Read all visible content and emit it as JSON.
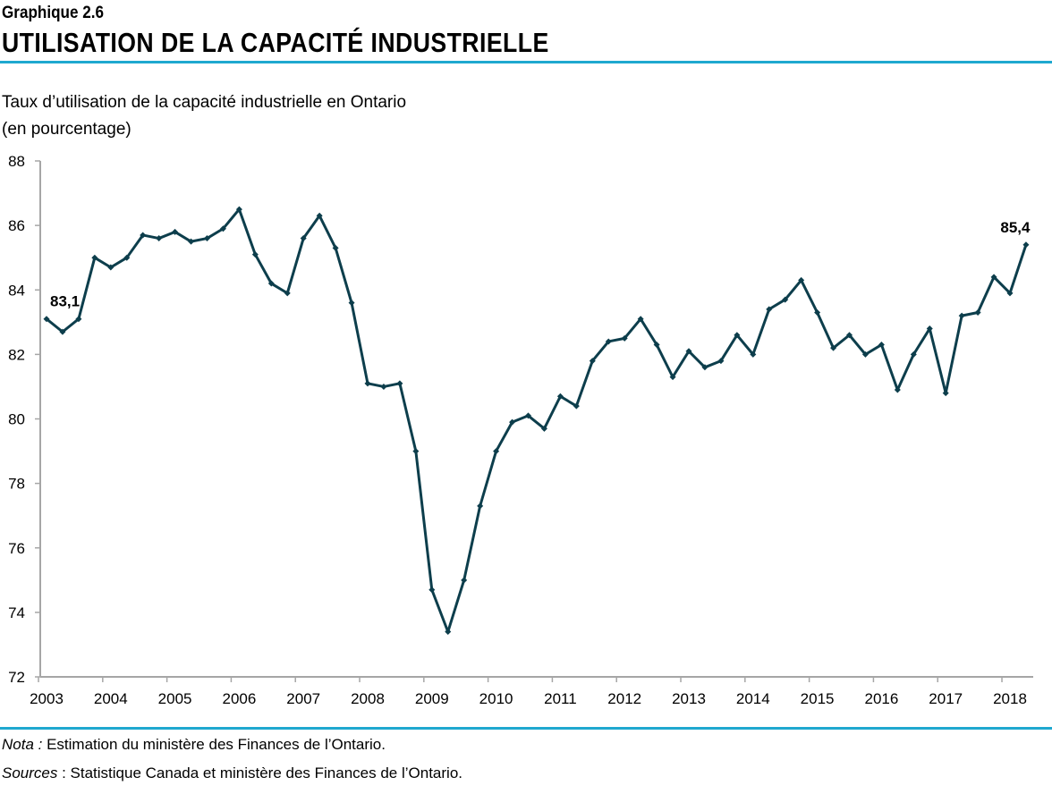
{
  "header": {
    "kicker": "Graphique 2.6",
    "title": "UTILISATION DE LA CAPACITÉ INDUSTRIELLE"
  },
  "subtitle": {
    "line1": "Taux d’utilisation de la capacité industrielle en Ontario",
    "line2": "(en pourcentage)"
  },
  "notes": {
    "nota_label": "Nota :",
    "nota_text": " Estimation du ministère des Finances de l’Ontario.",
    "sources_label": "Sources",
    "sources_text": " : Statistique Canada et ministère des Finances de l’Ontario."
  },
  "colors": {
    "line": "#0d3e4c",
    "rule": "#1fa8cf",
    "axis": "#a6a6a6"
  },
  "chart_data": {
    "type": "line",
    "title": "Taux d’utilisation de la capacité industrielle en Ontario",
    "ylabel": "(en pourcentage)",
    "ylim": [
      72,
      88
    ],
    "yticks": [
      72,
      74,
      76,
      78,
      80,
      82,
      84,
      86,
      88
    ],
    "frequency": "quarterly",
    "start": "2003T1",
    "xtick_labels": [
      "2003",
      "2004",
      "2005",
      "2006",
      "2007",
      "2008",
      "2009",
      "2010",
      "2011",
      "2012",
      "2013",
      "2014",
      "2015",
      "2016",
      "2017",
      "2018"
    ],
    "grid": false,
    "markers": "diamond",
    "values": [
      83.1,
      82.7,
      83.1,
      85.0,
      84.7,
      85.0,
      85.7,
      85.6,
      85.8,
      85.5,
      85.6,
      85.9,
      86.5,
      85.1,
      84.2,
      83.9,
      85.6,
      86.3,
      85.3,
      83.6,
      81.1,
      81.0,
      81.1,
      79.0,
      74.7,
      73.4,
      75.0,
      77.3,
      79.0,
      79.9,
      80.1,
      79.7,
      80.7,
      80.4,
      81.8,
      82.4,
      82.5,
      83.1,
      82.3,
      81.3,
      82.1,
      81.6,
      81.8,
      82.6,
      82.0,
      83.4,
      83.7,
      84.3,
      83.3,
      82.2,
      82.6,
      82.0,
      82.3,
      80.9,
      82.0,
      82.8,
      80.8,
      83.2,
      83.3,
      84.4,
      83.9,
      85.4
    ],
    "annotations": [
      {
        "index": 0,
        "text": "83,1"
      },
      {
        "index": 61,
        "text": "85,4"
      }
    ]
  }
}
